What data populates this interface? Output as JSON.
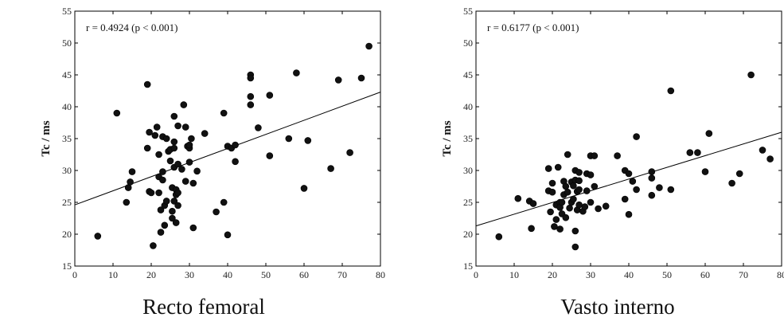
{
  "chart_data": [
    {
      "type": "scatter",
      "caption": "Recto femoral",
      "ylabel": "Tc / ms",
      "annotation": "r = 0.4924 (p < 0.001)",
      "xlim": [
        0,
        80
      ],
      "ylim": [
        15,
        55
      ],
      "xticks": [
        "0",
        "10",
        "20",
        "30",
        "40",
        "50",
        "60",
        "70",
        "80"
      ],
      "yticks": [
        "15",
        "20",
        "25",
        "30",
        "35",
        "40",
        "45",
        "50",
        "55"
      ],
      "regression": {
        "x": [
          0,
          80
        ],
        "y": [
          24.6,
          42.3
        ]
      },
      "x": [
        6,
        11,
        13.5,
        14,
        14.5,
        15,
        19,
        19,
        19.5,
        19.5,
        20,
        20.5,
        21,
        21.5,
        22,
        22,
        22,
        22.5,
        22.5,
        23,
        23,
        23,
        23.5,
        23.5,
        24,
        24,
        24.5,
        25,
        25,
        25.5,
        25.5,
        25.5,
        26,
        26,
        26,
        26,
        26,
        26.5,
        26.5,
        26.5,
        27,
        27,
        27,
        27,
        28,
        28.5,
        29,
        29,
        29.5,
        30,
        30,
        30,
        30.5,
        31,
        31,
        32,
        34,
        37,
        39,
        39,
        40,
        40,
        41,
        42,
        42,
        46,
        46,
        46,
        46,
        48,
        51,
        51,
        56,
        58,
        60,
        61,
        67,
        69,
        72,
        75,
        77
      ],
      "y": [
        19.7,
        39,
        25,
        27.3,
        28.2,
        29.8,
        43.5,
        33.5,
        36,
        26.7,
        26.5,
        18.2,
        35.5,
        36.8,
        32.5,
        29,
        26.5,
        23.8,
        20.3,
        29.8,
        35.3,
        28.5,
        24.5,
        21.4,
        25.2,
        35,
        33,
        33.3,
        31.5,
        27.3,
        23.6,
        22.5,
        38.5,
        34.5,
        33.5,
        30.5,
        25.2,
        27,
        26.2,
        21.8,
        37,
        31,
        26.5,
        24.5,
        30.2,
        40.3,
        36.8,
        28.3,
        33.8,
        33.5,
        34,
        31.3,
        35,
        21,
        28,
        29.9,
        35.8,
        23.5,
        39,
        25,
        33.8,
        19.9,
        33.5,
        34,
        31.4,
        45,
        44.5,
        41.6,
        40.3,
        36.7,
        41.8,
        32.3,
        35,
        45.3,
        27.2,
        34.7,
        30.3,
        44.2,
        32.8,
        44.5,
        49.5
      ]
    },
    {
      "type": "scatter",
      "caption": "Vasto interno",
      "ylabel": "Tc / ms",
      "annotation": "r = 0.6177 (p < 0.001)",
      "xlim": [
        0,
        80
      ],
      "ylim": [
        15,
        55
      ],
      "xticks": [
        "0",
        "10",
        "20",
        "30",
        "40",
        "50",
        "60",
        "70",
        "80"
      ],
      "yticks": [
        "15",
        "20",
        "25",
        "30",
        "35",
        "40",
        "45",
        "50",
        "55"
      ],
      "regression": {
        "x": [
          0,
          80
        ],
        "y": [
          21.3,
          36.0
        ]
      },
      "x": [
        6,
        11,
        14,
        14.5,
        15,
        19,
        19,
        19.5,
        20,
        20,
        20.5,
        21,
        21,
        21.5,
        22,
        22,
        22,
        22.5,
        22.5,
        23,
        23,
        23.5,
        23.5,
        24,
        24,
        24.5,
        25,
        25,
        25.5,
        25.5,
        26,
        26,
        26,
        26,
        26.5,
        26.5,
        27,
        27,
        27,
        27,
        28,
        28.5,
        29,
        29,
        30,
        30,
        30,
        31,
        31,
        32,
        34,
        37,
        39,
        39,
        40,
        40,
        41,
        42,
        42,
        46,
        46,
        46,
        48,
        51,
        51,
        56,
        58,
        60,
        61,
        67,
        69,
        72,
        75,
        77
      ],
      "y": [
        19.6,
        25.6,
        25.2,
        20.9,
        24.8,
        30.3,
        26.8,
        23.5,
        28,
        26.6,
        21.2,
        22.3,
        24.6,
        30.5,
        25,
        24.2,
        20.8,
        25,
        23.2,
        26.2,
        28.3,
        27.5,
        22.6,
        26.6,
        32.5,
        24.1,
        28.2,
        25,
        27.6,
        25.5,
        30,
        28.5,
        20.5,
        18,
        26.7,
        23.8,
        29.7,
        28.4,
        24.6,
        27,
        23.6,
        24.3,
        26.8,
        29.5,
        32.3,
        29.3,
        25,
        32.3,
        27.5,
        24,
        24.4,
        32.3,
        30,
        25.5,
        29.5,
        23.1,
        28.3,
        27,
        35.3,
        29.8,
        28.8,
        26.1,
        27.3,
        42.5,
        27,
        32.8,
        32.8,
        29.8,
        35.8,
        28,
        29.5,
        45,
        33.2,
        31.8
      ]
    }
  ]
}
